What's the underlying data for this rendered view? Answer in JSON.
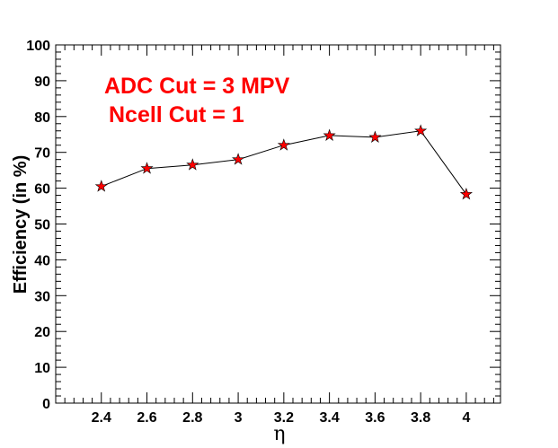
{
  "chart_data": {
    "type": "line",
    "xlabel": "η",
    "ylabel": "Efficiency (in %)",
    "xlim": [
      2.2,
      4.15
    ],
    "ylim": [
      0,
      100
    ],
    "x_ticks": [
      "2.4",
      "2.6",
      "2.8",
      "3",
      "3.2",
      "3.4",
      "3.6",
      "3.8",
      "4"
    ],
    "y_ticks": [
      "0",
      "10",
      "20",
      "30",
      "40",
      "50",
      "60",
      "70",
      "80",
      "90",
      "100"
    ],
    "annotations": [
      "ADC Cut = 3 MPV",
      "Ncell Cut = 1"
    ],
    "grid": false,
    "series": [
      {
        "x": [
          2.4,
          2.6,
          2.8,
          3.0,
          3.2,
          3.4,
          3.6,
          3.8,
          4.0
        ],
        "y": [
          60.5,
          65.5,
          66.5,
          68.0,
          72.0,
          74.7,
          74.2,
          76.0,
          58.3
        ],
        "marker": "star",
        "marker_color": "#ff0000",
        "line_color": "#000000"
      }
    ]
  }
}
